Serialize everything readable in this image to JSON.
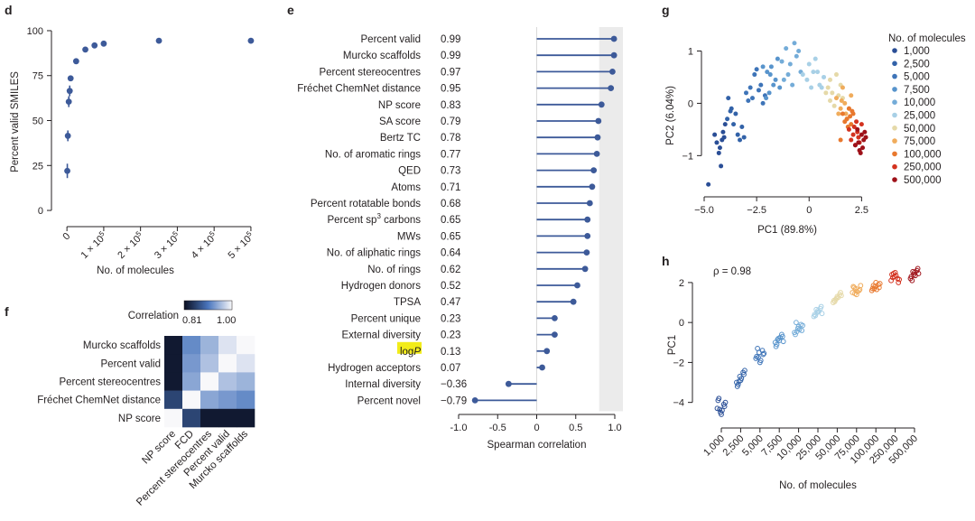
{
  "panels": {
    "d": "d",
    "e": "e",
    "f": "f",
    "g": "g",
    "h": "h"
  },
  "chart_data": [
    {
      "id": "d",
      "type": "scatter",
      "title": "",
      "xlabel": "No. of molecules",
      "ylabel": "Percent valid SMILES",
      "xlim": [
        -20000,
        510000
      ],
      "ylim": [
        -5,
        102
      ],
      "xticks": [
        {
          "value": 0,
          "label": "0",
          "sup": ""
        },
        {
          "value": 100000,
          "label": "1 × 10",
          "sup": "5"
        },
        {
          "value": 200000,
          "label": "2 × 10",
          "sup": "5"
        },
        {
          "value": 300000,
          "label": "3 × 10",
          "sup": "5"
        },
        {
          "value": 400000,
          "label": "4 × 10",
          "sup": "5"
        },
        {
          "value": 500000,
          "label": "5 × 10",
          "sup": "5"
        }
      ],
      "yticks": [
        0,
        25,
        50,
        75,
        100
      ],
      "points": [
        {
          "x": 1000,
          "y": 22,
          "err": 4
        },
        {
          "x": 2500,
          "y": 41.5,
          "err": 3
        },
        {
          "x": 5000,
          "y": 60.5,
          "err": 3
        },
        {
          "x": 7500,
          "y": 66.5,
          "err": 3
        },
        {
          "x": 10000,
          "y": 73.5,
          "err": 1.5
        },
        {
          "x": 25000,
          "y": 83,
          "err": 1.5
        },
        {
          "x": 50000,
          "y": 89.5,
          "err": 0.6
        },
        {
          "x": 75000,
          "y": 91.8,
          "err": 0.4
        },
        {
          "x": 100000,
          "y": 92.8,
          "err": 0.4
        },
        {
          "x": 250000,
          "y": 94.4,
          "err": 0.3
        },
        {
          "x": 500000,
          "y": 94.4,
          "err": 0.3
        }
      ]
    },
    {
      "id": "e",
      "type": "lollipop",
      "xlabel": "Spearman correlation",
      "xlim": [
        -1.0,
        1.0
      ],
      "xticks": [
        "-1.0",
        "-0.5",
        "0",
        "0.5",
        "1.0"
      ],
      "xtick_values": [
        -1.0,
        -0.5,
        0,
        0.5,
        1.0
      ],
      "shade_from": 0.8,
      "rows": [
        {
          "label": "Percent valid",
          "value": 0.99,
          "text": "0.99"
        },
        {
          "label": "Murcko scaffolds",
          "value": 0.99,
          "text": "0.99"
        },
        {
          "label": "Percent stereocentres",
          "value": 0.97,
          "text": "0.97"
        },
        {
          "label": "Fréchet ChemNet distance",
          "value": 0.95,
          "text": "0.95"
        },
        {
          "label": "NP score",
          "value": 0.83,
          "text": "0.83"
        },
        {
          "label": "SA score",
          "value": 0.79,
          "text": "0.79"
        },
        {
          "label": "Bertz TC",
          "value": 0.78,
          "text": "0.78"
        },
        {
          "label": "No. of aromatic rings",
          "value": 0.77,
          "text": "0.77"
        },
        {
          "label": "QED",
          "value": 0.73,
          "text": "0.73"
        },
        {
          "label": "Atoms",
          "value": 0.71,
          "text": "0.71"
        },
        {
          "label": "Percent rotatable bonds",
          "value": 0.68,
          "text": "0.68"
        },
        {
          "label": "Percent sp",
          "sup": "3",
          "label_after": " carbons",
          "value": 0.65,
          "text": "0.65"
        },
        {
          "label": "MWs",
          "value": 0.65,
          "text": "0.65"
        },
        {
          "label": "No. of aliphatic rings",
          "value": 0.64,
          "text": "0.64"
        },
        {
          "label": "No. of rings",
          "value": 0.62,
          "text": "0.62"
        },
        {
          "label": "Hydrogen donors",
          "value": 0.52,
          "text": "0.52"
        },
        {
          "label": "TPSA",
          "value": 0.47,
          "text": "0.47"
        },
        {
          "label": "Percent unique",
          "value": 0.23,
          "text": "0.23"
        },
        {
          "label": "External diversity",
          "value": 0.23,
          "text": "0.23"
        },
        {
          "label": "log",
          "italic_after": "P",
          "highlight": true,
          "value": 0.13,
          "text": "0.13"
        },
        {
          "label": "Hydrogen acceptors",
          "value": 0.07,
          "text": "0.07"
        },
        {
          "label": "Internal diversity",
          "value": -0.36,
          "text": "−0.36"
        },
        {
          "label": "Percent novel",
          "value": -0.79,
          "text": "−0.79"
        }
      ]
    },
    {
      "id": "f",
      "type": "heatmap",
      "colorbar": {
        "title": "Correlation",
        "min_label": "0.81",
        "max_label": "1.00",
        "min": 0.81,
        "max": 1.0
      },
      "row_labels": [
        "Murcko scaffolds",
        "Percent valid",
        "Percent stereocentres",
        "Fréchet ChemNet distance",
        "NP score"
      ],
      "col_labels": [
        "NP score",
        "FCD",
        "Percent stereocentres",
        "Percent valid",
        "Murcko scaffolds"
      ],
      "values": [
        [
          0.82,
          0.92,
          0.95,
          0.985,
          1.0
        ],
        [
          0.82,
          0.93,
          0.96,
          1.0,
          0.985
        ],
        [
          0.82,
          0.94,
          1.0,
          0.96,
          0.95
        ],
        [
          0.86,
          1.0,
          0.94,
          0.93,
          0.92
        ],
        [
          1.0,
          0.86,
          0.82,
          0.82,
          0.82
        ]
      ]
    },
    {
      "id": "g",
      "type": "scatter",
      "xlabel": "PC1 (89.8%)",
      "ylabel": "PC2 (6.04%)",
      "xlim": [
        -5.0,
        3.0
      ],
      "ylim": [
        -1.65,
        1.25
      ],
      "xticks": [
        {
          "value": -5.0,
          "label": "−5.0"
        },
        {
          "value": -2.5,
          "label": "−2.5"
        },
        {
          "value": 0,
          "label": "0"
        },
        {
          "value": 2.5,
          "label": "2.5"
        }
      ],
      "yticks": [
        {
          "value": -1,
          "label": "−1"
        },
        {
          "value": 0,
          "label": "0"
        },
        {
          "value": 1,
          "label": "1"
        }
      ],
      "legend_title": "No. of molecules",
      "legend_position": "right",
      "series": [
        {
          "name": "1,000",
          "color": "#2a4e96",
          "points": [
            [
              -4.8,
              -1.55
            ],
            [
              -4.3,
              -0.95
            ],
            [
              -4.2,
              -1.2
            ],
            [
              -4.05,
              -0.65
            ],
            [
              -4.4,
              -0.75
            ],
            [
              -4.1,
              -0.55
            ],
            [
              -4.25,
              -0.85
            ],
            [
              -4.0,
              -0.4
            ],
            [
              -4.5,
              -0.6
            ],
            [
              -4.15,
              -0.7
            ]
          ]
        },
        {
          "name": "2,500",
          "color": "#3262a8",
          "points": [
            [
              -3.9,
              -0.3
            ],
            [
              -3.7,
              -0.1
            ],
            [
              -3.3,
              -0.7
            ],
            [
              -3.1,
              -0.65
            ],
            [
              -3.6,
              -0.4
            ],
            [
              -3.85,
              0.1
            ],
            [
              -3.4,
              -0.6
            ],
            [
              -3.5,
              -0.2
            ],
            [
              -3.2,
              -0.45
            ],
            [
              -3.75,
              -0.15
            ]
          ]
        },
        {
          "name": "5,000",
          "color": "#3e74b8",
          "points": [
            [
              -3.0,
              0.2
            ],
            [
              -2.8,
              0.3
            ],
            [
              -2.5,
              0.65
            ],
            [
              -2.7,
              0.1
            ],
            [
              -2.3,
              0.35
            ],
            [
              -2.6,
              0.55
            ],
            [
              -2.2,
              0.0
            ],
            [
              -2.9,
              0.05
            ],
            [
              -2.4,
              0.25
            ],
            [
              -2.1,
              0.15
            ]
          ]
        },
        {
          "name": "7,500",
          "color": "#5894cc",
          "points": [
            [
              -2.0,
              0.6
            ],
            [
              -1.8,
              0.7
            ],
            [
              -1.6,
              0.45
            ],
            [
              -2.2,
              0.7
            ],
            [
              -1.9,
              0.2
            ],
            [
              -1.5,
              0.85
            ],
            [
              -1.7,
              0.35
            ],
            [
              -1.4,
              0.3
            ],
            [
              -2.05,
              0.1
            ],
            [
              -1.85,
              0.55
            ]
          ]
        },
        {
          "name": "10,000",
          "color": "#74acd8",
          "points": [
            [
              -1.3,
              0.8
            ],
            [
              -1.1,
              1.05
            ],
            [
              -0.9,
              0.75
            ],
            [
              -0.7,
              1.15
            ],
            [
              -0.5,
              1.0
            ],
            [
              -1.0,
              0.55
            ],
            [
              -0.8,
              0.35
            ],
            [
              -1.2,
              0.45
            ],
            [
              -0.6,
              0.9
            ],
            [
              -0.4,
              0.6
            ]
          ]
        },
        {
          "name": "25,000",
          "color": "#a8d0e6",
          "points": [
            [
              -0.3,
              0.55
            ],
            [
              0.0,
              0.75
            ],
            [
              0.2,
              0.6
            ],
            [
              0.5,
              0.35
            ],
            [
              0.3,
              0.85
            ],
            [
              -0.1,
              0.45
            ],
            [
              0.6,
              0.3
            ],
            [
              0.1,
              0.3
            ],
            [
              0.4,
              0.6
            ],
            [
              0.7,
              0.5
            ]
          ]
        },
        {
          "name": "50,000",
          "color": "#e5d9a8",
          "points": [
            [
              0.9,
              0.3
            ],
            [
              1.1,
              0.2
            ],
            [
              1.3,
              0.55
            ],
            [
              1.0,
              0.05
            ],
            [
              1.5,
              0.35
            ],
            [
              1.2,
              -0.05
            ],
            [
              1.4,
              0.15
            ],
            [
              0.8,
              0.2
            ],
            [
              1.6,
              0.1
            ],
            [
              1.0,
              0.45
            ]
          ]
        },
        {
          "name": "75,000",
          "color": "#f0ac5c",
          "points": [
            [
              1.3,
              0.1
            ],
            [
              1.5,
              -0.1
            ],
            [
              1.7,
              0.0
            ],
            [
              1.6,
              0.3
            ],
            [
              1.9,
              -0.1
            ],
            [
              1.4,
              -0.2
            ],
            [
              1.8,
              -0.3
            ],
            [
              2.0,
              0.15
            ],
            [
              1.55,
              0.05
            ],
            [
              1.75,
              -0.2
            ]
          ]
        },
        {
          "name": "100,000",
          "color": "#e8782e",
          "points": [
            [
              1.6,
              -0.2
            ],
            [
              1.8,
              -0.3
            ],
            [
              1.9,
              -0.1
            ],
            [
              2.0,
              -0.4
            ],
            [
              2.1,
              -0.2
            ],
            [
              1.7,
              -0.35
            ],
            [
              1.95,
              -0.25
            ],
            [
              1.85,
              -0.45
            ],
            [
              2.05,
              -0.15
            ],
            [
              1.5,
              -0.7
            ]
          ]
        },
        {
          "name": "250,000",
          "color": "#d3321f",
          "points": [
            [
              2.0,
              -0.7
            ],
            [
              2.1,
              -0.6
            ],
            [
              2.2,
              -0.8
            ],
            [
              2.3,
              -0.55
            ],
            [
              2.4,
              -0.75
            ],
            [
              1.9,
              -0.5
            ],
            [
              2.15,
              -0.45
            ],
            [
              2.35,
              -0.65
            ],
            [
              2.5,
              -0.4
            ],
            [
              2.25,
              -0.35
            ]
          ]
        },
        {
          "name": "500,000",
          "color": "#9e1119",
          "points": [
            [
              2.2,
              -0.8
            ],
            [
              2.4,
              -0.9
            ],
            [
              2.5,
              -0.6
            ],
            [
              2.6,
              -0.7
            ],
            [
              2.3,
              -0.5
            ],
            [
              2.55,
              -0.85
            ],
            [
              2.45,
              -0.95
            ],
            [
              2.65,
              -0.55
            ],
            [
              2.35,
              -0.75
            ],
            [
              2.7,
              -0.65
            ]
          ]
        }
      ]
    },
    {
      "id": "h",
      "type": "scatter",
      "xlabel": "No. of molecules",
      "ylabel": "PC1",
      "annotation": "ρ = 0.98",
      "ylim": [
        -5.1,
        2.9
      ],
      "yticks": [
        {
          "value": -4,
          "label": "−4"
        },
        {
          "value": -2,
          "label": "−2"
        },
        {
          "value": 0,
          "label": "0"
        },
        {
          "value": 2,
          "label": "2"
        }
      ],
      "categories": [
        "1,000",
        "2,500",
        "5,000",
        "7,500",
        "10,000",
        "25,000",
        "50,000",
        "75,000",
        "100,000",
        "250,000",
        "500,000"
      ],
      "colors": [
        "#2a4e96",
        "#3262a8",
        "#3e74b8",
        "#5894cc",
        "#74acd8",
        "#a8d0e6",
        "#e5d9a8",
        "#f0ac5c",
        "#e8782e",
        "#d3321f",
        "#9e1119"
      ],
      "groups": [
        [
          -4.3,
          -4.5,
          -4.1,
          -3.9,
          -4.6,
          -4.2,
          -3.8,
          -4.4,
          -4.0,
          -4.35
        ],
        [
          -3.0,
          -2.7,
          -2.5,
          -3.2,
          -2.9,
          -2.6,
          -3.1,
          -2.8,
          -2.4,
          -2.95
        ],
        [
          -1.8,
          -1.5,
          -1.4,
          -1.7,
          -2.0,
          -1.6,
          -1.3,
          -1.9,
          -1.55,
          -1.75
        ],
        [
          -1.0,
          -0.8,
          -0.6,
          -1.2,
          -0.9,
          -0.7,
          -1.1,
          -0.75,
          -0.95,
          -0.85
        ],
        [
          -0.5,
          -0.3,
          -0.1,
          -0.6,
          -0.2,
          -0.4,
          0.0,
          -0.35,
          -0.15,
          -0.45
        ],
        [
          0.3,
          0.5,
          0.7,
          0.4,
          0.6,
          0.8,
          0.35,
          0.55,
          0.45,
          0.65
        ],
        [
          1.0,
          1.2,
          1.4,
          1.1,
          1.3,
          1.5,
          1.05,
          1.25,
          1.35,
          1.15
        ],
        [
          1.5,
          1.7,
          1.6,
          1.8,
          1.4,
          1.65,
          1.75,
          1.55,
          1.85,
          1.45
        ],
        [
          1.6,
          1.8,
          1.9,
          1.7,
          2.0,
          1.75,
          1.85,
          1.65,
          1.95,
          1.7
        ],
        [
          2.1,
          2.3,
          2.2,
          2.4,
          2.5,
          2.0,
          2.25,
          2.35,
          2.15,
          2.45
        ],
        [
          2.2,
          2.4,
          2.6,
          2.3,
          2.5,
          2.7,
          2.1,
          2.35,
          2.45,
          2.55
        ]
      ]
    }
  ]
}
